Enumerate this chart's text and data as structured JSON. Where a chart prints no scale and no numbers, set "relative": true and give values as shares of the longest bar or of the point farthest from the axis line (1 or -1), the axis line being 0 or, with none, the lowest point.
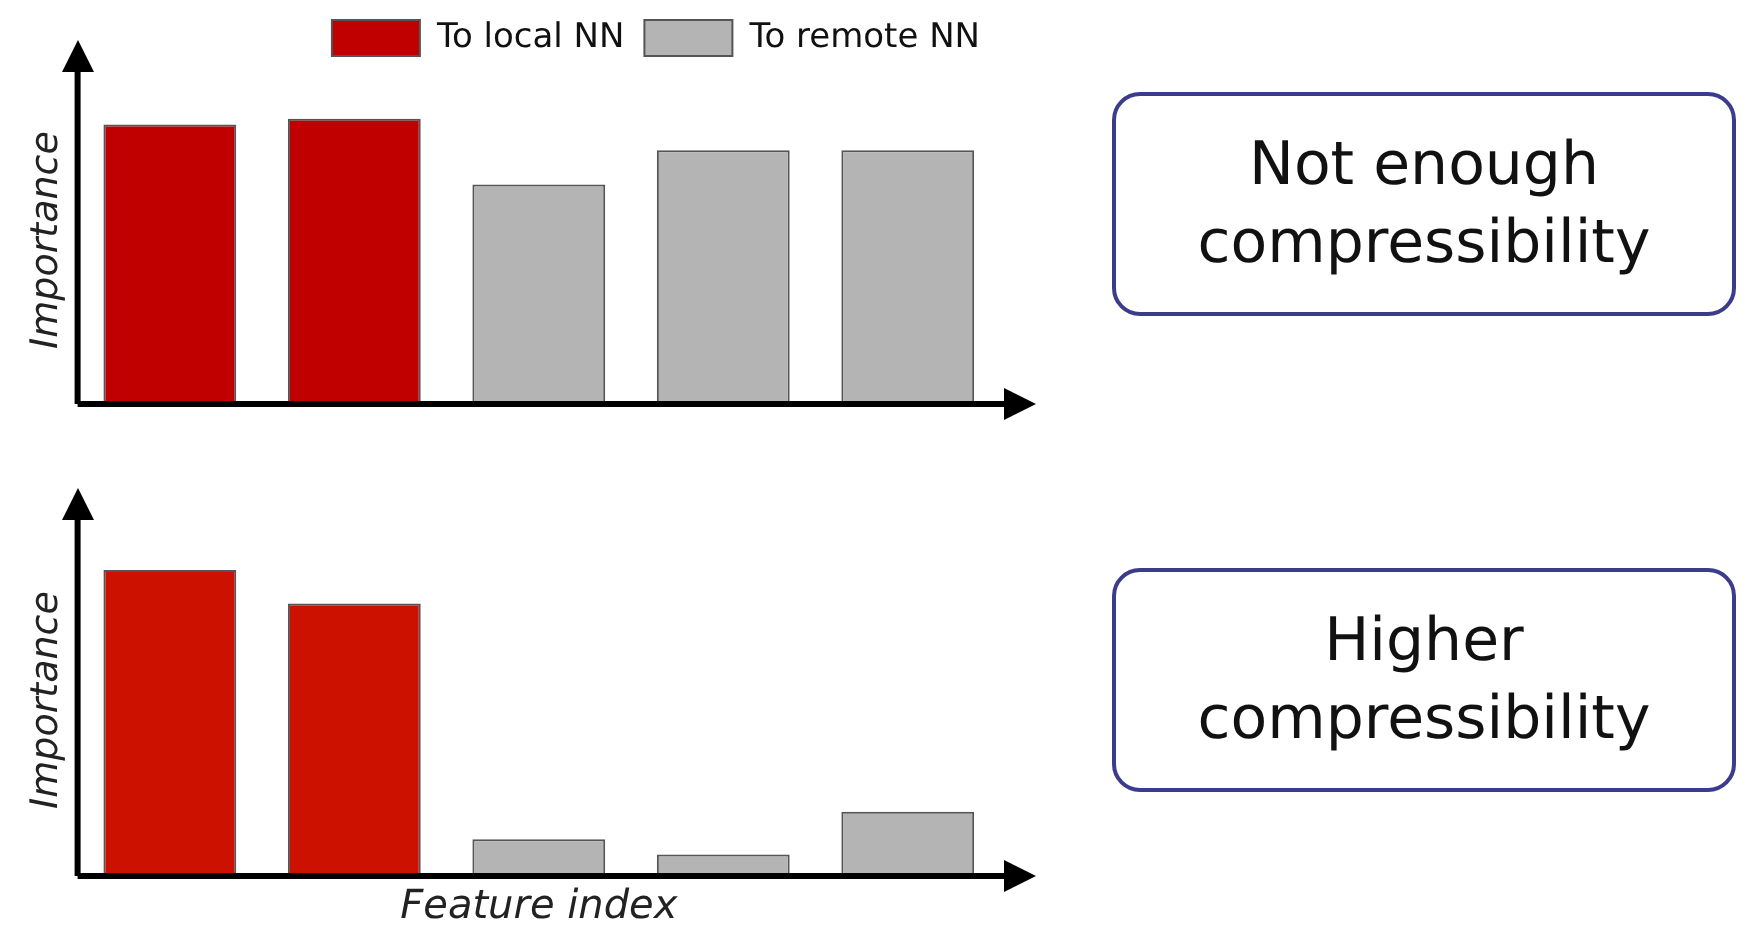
{
  "chart_data": [
    {
      "type": "bar",
      "relative": true,
      "stacked": true,
      "ylabel": "Importance",
      "categories": [
        null,
        null,
        null,
        null,
        null
      ],
      "legend": "top",
      "series": [
        {
          "name": "To local NN",
          "color": "#c00000",
          "values": [
            0.98,
            1,
            null,
            null,
            null
          ]
        },
        {
          "name": "To remote NN",
          "color": "#b4b4b4",
          "values": [
            null,
            null,
            0.77,
            0.89,
            0.89
          ]
        }
      ],
      "annotations": [
        "Not enough compressibility"
      ]
    },
    {
      "type": "bar",
      "relative": true,
      "stacked": true,
      "ylabel": "Importance",
      "xlabel": "Feature index",
      "categories": [
        null,
        null,
        null,
        null,
        null
      ],
      "series": [
        {
          "color": "#cc1100",
          "values": [
            1,
            0.89,
            null,
            null,
            null
          ]
        },
        {
          "color": "#b4b4b4",
          "values": [
            null,
            null,
            0.12,
            0.07,
            0.21
          ]
        }
      ],
      "annotations": [
        "Higher compressibility"
      ]
    }
  ]
}
